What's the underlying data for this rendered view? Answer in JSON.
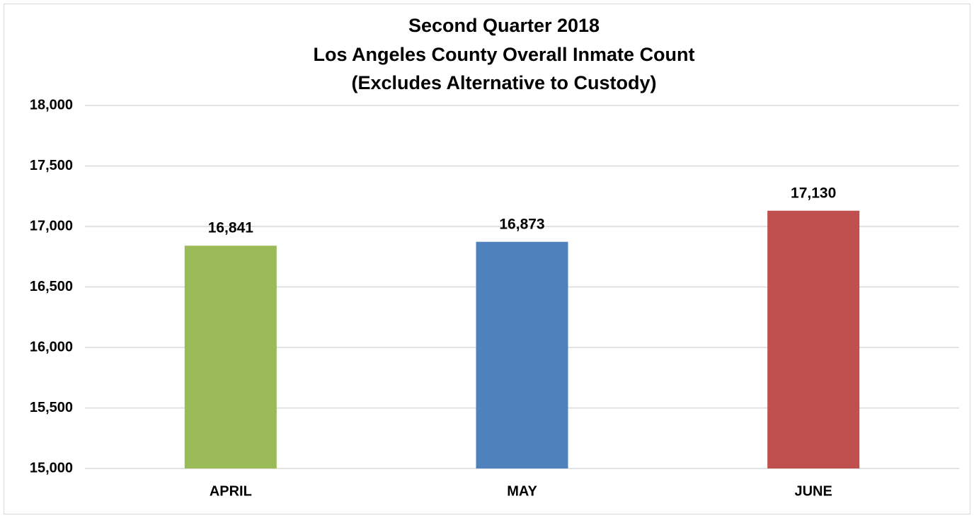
{
  "chart_data": {
    "type": "bar",
    "title": [
      "Second Quarter 2018",
      "Los Angeles County Overall Inmate Count",
      "(Excludes Alternative to Custody)"
    ],
    "categories": [
      "APRIL",
      "MAY",
      "JUNE"
    ],
    "values": [
      16841,
      16873,
      17130
    ],
    "value_labels": [
      "16,841",
      "16,873",
      "17,130"
    ],
    "colors": [
      "#9bbb59",
      "#4f81bd",
      "#c0504d"
    ],
    "ylim": [
      15000,
      18000
    ],
    "yticks": [
      {
        "value": 15000,
        "label": "15,000"
      },
      {
        "value": 15500,
        "label": "15,500"
      },
      {
        "value": 16000,
        "label": "16,000"
      },
      {
        "value": 16500,
        "label": "16,500"
      },
      {
        "value": 17000,
        "label": "17,000"
      },
      {
        "value": 17500,
        "label": "17,500"
      },
      {
        "value": 18000,
        "label": "18,000"
      }
    ],
    "grid": true
  }
}
